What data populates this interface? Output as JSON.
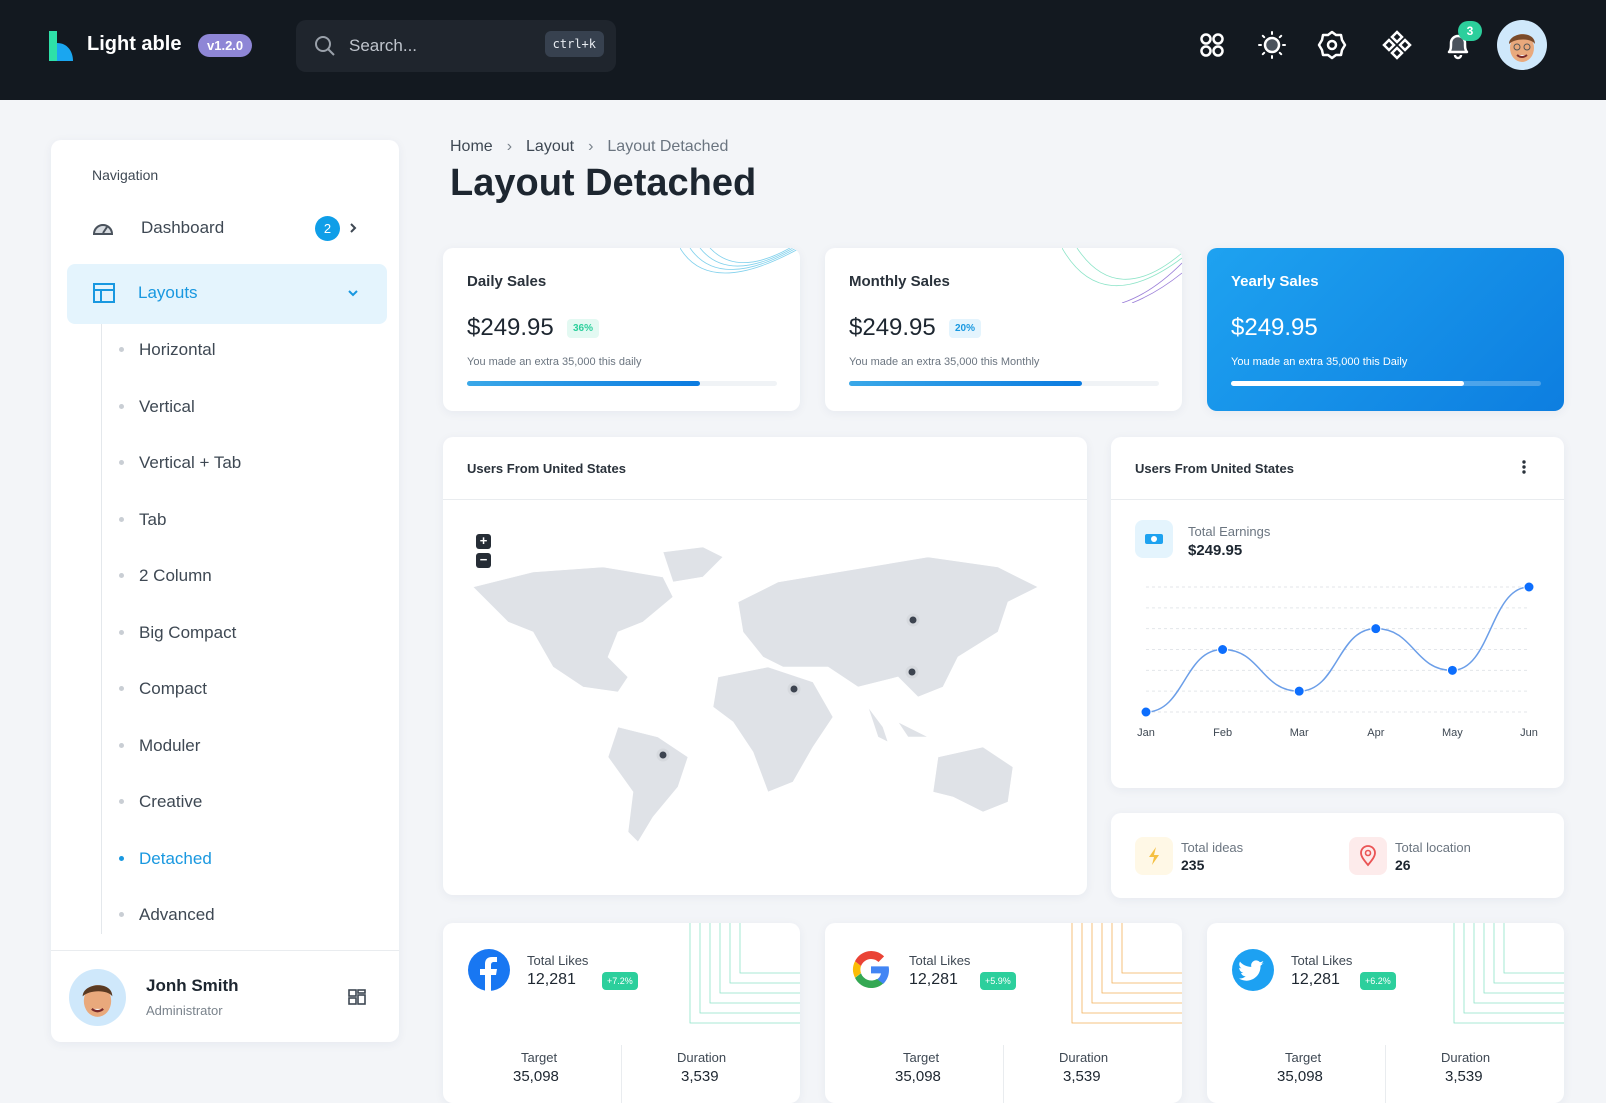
{
  "header": {
    "brand": "Light able",
    "version": "v1.2.0",
    "search_placeholder": "Search...",
    "search_shortcut": "ctrl+k",
    "notification_count": "3",
    "icons": [
      "apps-icon",
      "sun-icon",
      "gear-icon",
      "components-icon",
      "bell-icon"
    ]
  },
  "sidebar": {
    "section": "Navigation",
    "dashboard": {
      "label": "Dashboard",
      "badge": "2"
    },
    "layouts": {
      "label": "Layouts"
    },
    "items": [
      {
        "label": "Horizontal"
      },
      {
        "label": "Vertical"
      },
      {
        "label": "Vertical + Tab"
      },
      {
        "label": "Tab"
      },
      {
        "label": "2 Column"
      },
      {
        "label": "Big Compact"
      },
      {
        "label": "Compact"
      },
      {
        "label": "Moduler"
      },
      {
        "label": "Creative"
      },
      {
        "label": "Detached",
        "active": true
      },
      {
        "label": "Advanced"
      }
    ],
    "user": {
      "name": "Jonh Smith",
      "role": "Administrator"
    }
  },
  "breadcrumb": [
    "Home",
    "Layout",
    "Layout Detached"
  ],
  "page_title": "Layout Detached",
  "sales": [
    {
      "title": "Daily Sales",
      "value": "$249.95",
      "percent": "36%",
      "note": "You made an extra 35,000 this daily",
      "progress": 75,
      "badge_color": "#2ccf9c",
      "badge_bg": "#e3f9f2"
    },
    {
      "title": "Monthly Sales",
      "value": "$249.95",
      "percent": "20%",
      "note": "You made an extra 35,000 this Monthly",
      "progress": 75,
      "badge_color": "#1998e0",
      "badge_bg": "#e4f4fd"
    },
    {
      "title": "Yearly Sales",
      "value": "$249.95",
      "note": "You made an extra 35,000 this Daily",
      "progress": 75
    }
  ],
  "map_card": {
    "title": "Users From United States",
    "zoom_in": "+",
    "zoom_out": "−"
  },
  "chart_card": {
    "title": "Users From United States",
    "earnings_label": "Total Earnings",
    "earnings_value": "$249.95"
  },
  "chart_data": {
    "type": "line",
    "categories": [
      "Jan",
      "Feb",
      "Mar",
      "Apr",
      "May",
      "Jun"
    ],
    "values": [
      0,
      3,
      1,
      4,
      2,
      6
    ],
    "ylim": [
      0,
      6
    ],
    "grid": true,
    "color": "#0d6efd"
  },
  "stats": [
    {
      "label": "Total ideas",
      "value": "235"
    },
    {
      "label": "Total location",
      "value": "26"
    }
  ],
  "social": [
    {
      "icon": "facebook-icon",
      "label": "Total Likes",
      "value": "12,281",
      "growth": "+7.2%",
      "target_label": "Target",
      "target": "35,098",
      "duration_label": "Duration",
      "duration": "3,539"
    },
    {
      "icon": "google-icon",
      "label": "Total Likes",
      "value": "12,281",
      "growth": "+5.9%",
      "target_label": "Target",
      "target": "35,098",
      "duration_label": "Duration",
      "duration": "3,539"
    },
    {
      "icon": "twitter-icon",
      "label": "Total Likes",
      "value": "12,281",
      "growth": "+6.2%",
      "target_label": "Target",
      "target": "35,098",
      "duration_label": "Duration",
      "duration": "3,539"
    }
  ]
}
